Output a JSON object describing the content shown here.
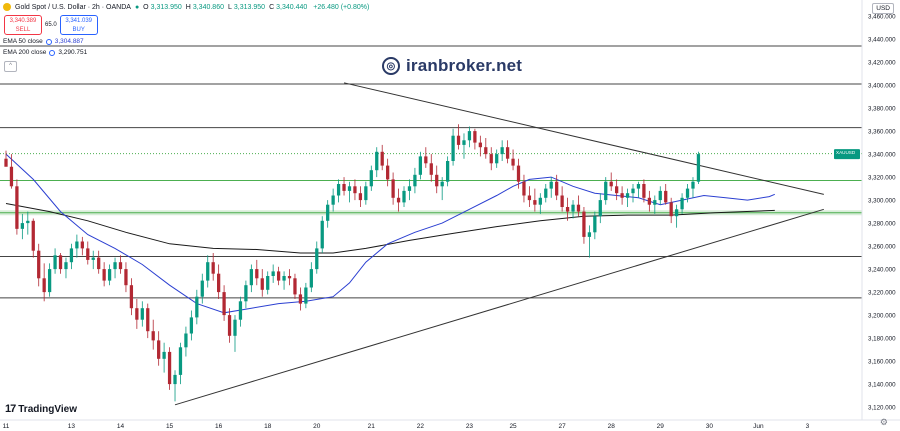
{
  "header": {
    "symbol": "Gold Spot / U.S. Dollar · 2h · OANDA",
    "ohlc": [
      {
        "k": "O",
        "v": "3,313.950"
      },
      {
        "k": "H",
        "v": "3,340.860"
      },
      {
        "k": "L",
        "v": "3,313.950"
      },
      {
        "k": "C",
        "v": "3,340.440"
      },
      {
        "k": "",
        "v": "+26.480 (+0.80%)"
      }
    ]
  },
  "trade": {
    "sell_price": "3,340.389",
    "sell_label": "SELL",
    "spread": "65.0",
    "buy_price": "3,341.039",
    "buy_label": "BUY"
  },
  "indicators": {
    "ema50_label": "EMA 50 close",
    "ema50_value": "3,304.887",
    "ema200_label": "EMA 200 close",
    "ema200_value": "3,290.751"
  },
  "currency": "USD",
  "watermark": "iranbroker.net",
  "brand": "TradingView",
  "colors": {
    "up": "#089981",
    "down": "#b22833",
    "ema50": "#2b3fd1",
    "ema200": "#1a1a1a",
    "level_green": "#4caf50",
    "trendline": "#333333"
  },
  "chart_data": {
    "type": "candlestick",
    "symbol": "XAUUSD",
    "timeframe": "2h",
    "y_ticks": [
      3460,
      3440,
      3420,
      3400,
      3380,
      3360,
      3340,
      3320,
      3300,
      3280,
      3260,
      3240,
      3220,
      3200,
      3180,
      3160,
      3140,
      3120
    ],
    "ylim": [
      3114,
      3474
    ],
    "x_ticks": [
      {
        "label": "11",
        "i": 0
      },
      {
        "label": "13",
        "i": 12
      },
      {
        "label": "14",
        "i": 21
      },
      {
        "label": "15",
        "i": 30
      },
      {
        "label": "16",
        "i": 39
      },
      {
        "label": "18",
        "i": 48
      },
      {
        "label": "20",
        "i": 57
      },
      {
        "label": "21",
        "i": 67
      },
      {
        "label": "22",
        "i": 76
      },
      {
        "label": "23",
        "i": 85
      },
      {
        "label": "25",
        "i": 93
      },
      {
        "label": "27",
        "i": 102
      },
      {
        "label": "28",
        "i": 111
      },
      {
        "label": "29",
        "i": 120
      },
      {
        "label": "30",
        "i": 129
      },
      {
        "label": "Jun",
        "i": 138
      },
      {
        "label": "3",
        "i": 147
      }
    ],
    "xlim": [
      0,
      157
    ],
    "horizontal_levels": [
      {
        "price": 3434.0,
        "label": "3,434.524",
        "style": "solid"
      },
      {
        "price": 3401.0,
        "label": "3,399.117",
        "style": "solid"
      },
      {
        "price": 3363.0,
        "label": "3,364.585",
        "style": "solid"
      },
      {
        "price": 3340.44,
        "label": "3,340.440",
        "style": "dotted-green",
        "current": true,
        "tag": "XAUUSD",
        "tag_sub": "19:03"
      },
      {
        "price": 3317.0,
        "label": "3,318.381",
        "style": "green-solid"
      },
      {
        "price": 3289.0,
        "label": "3,288.208",
        "style": "green-band"
      },
      {
        "price": 3251.0,
        "label": "3,250.945",
        "style": "solid"
      },
      {
        "price": 3215.0,
        "label": "3,215.469",
        "style": "solid"
      }
    ],
    "trendlines": [
      {
        "from": {
          "i": 62,
          "p": 3402
        },
        "to": {
          "i": 150,
          "p": 3305
        }
      },
      {
        "from": {
          "i": 31,
          "p": 3122
        },
        "to": {
          "i": 150,
          "p": 3292
        }
      }
    ],
    "ema50": [
      [
        0,
        3340
      ],
      [
        5,
        3318
      ],
      [
        10,
        3290
      ],
      [
        15,
        3270
      ],
      [
        20,
        3258
      ],
      [
        25,
        3244
      ],
      [
        30,
        3226
      ],
      [
        35,
        3210
      ],
      [
        40,
        3202
      ],
      [
        45,
        3206
      ],
      [
        50,
        3210
      ],
      [
        55,
        3212
      ],
      [
        60,
        3216
      ],
      [
        63,
        3228
      ],
      [
        66,
        3246
      ],
      [
        70,
        3262
      ],
      [
        75,
        3272
      ],
      [
        80,
        3280
      ],
      [
        85,
        3292
      ],
      [
        90,
        3304
      ],
      [
        93,
        3312
      ],
      [
        96,
        3318
      ],
      [
        100,
        3320
      ],
      [
        104,
        3312
      ],
      [
        108,
        3306
      ],
      [
        112,
        3304
      ],
      [
        116,
        3302
      ],
      [
        120,
        3296
      ],
      [
        124,
        3300
      ],
      [
        128,
        3304
      ],
      [
        132,
        3302
      ],
      [
        136,
        3300
      ],
      [
        140,
        3303
      ],
      [
        141,
        3305
      ]
    ],
    "ema200": [
      [
        0,
        3297
      ],
      [
        8,
        3290
      ],
      [
        15,
        3282
      ],
      [
        22,
        3272
      ],
      [
        30,
        3262
      ],
      [
        38,
        3258
      ],
      [
        46,
        3257
      ],
      [
        54,
        3254
      ],
      [
        60,
        3254
      ],
      [
        66,
        3258
      ],
      [
        74,
        3265
      ],
      [
        82,
        3271
      ],
      [
        90,
        3277
      ],
      [
        98,
        3282
      ],
      [
        106,
        3286
      ],
      [
        114,
        3287
      ],
      [
        122,
        3287
      ],
      [
        130,
        3289
      ],
      [
        141,
        3291
      ]
    ],
    "candles": [
      [
        3336,
        3343,
        3330,
        3329
      ],
      [
        3329,
        3340,
        3310,
        3312
      ],
      [
        3312,
        3318,
        3270,
        3275
      ],
      [
        3275,
        3288,
        3266,
        3280
      ],
      [
        3280,
        3290,
        3270,
        3282
      ],
      [
        3282,
        3284,
        3250,
        3256
      ],
      [
        3256,
        3262,
        3225,
        3232
      ],
      [
        3232,
        3245,
        3212,
        3220
      ],
      [
        3220,
        3245,
        3216,
        3240
      ],
      [
        3240,
        3258,
        3236,
        3252
      ],
      [
        3252,
        3254,
        3236,
        3240
      ],
      [
        3240,
        3250,
        3232,
        3246
      ],
      [
        3246,
        3262,
        3240,
        3258
      ],
      [
        3258,
        3270,
        3250,
        3264
      ],
      [
        3264,
        3268,
        3252,
        3258
      ],
      [
        3258,
        3264,
        3244,
        3248
      ],
      [
        3248,
        3256,
        3240,
        3250
      ],
      [
        3250,
        3256,
        3236,
        3240
      ],
      [
        3240,
        3246,
        3225,
        3230
      ],
      [
        3230,
        3244,
        3226,
        3240
      ],
      [
        3240,
        3250,
        3232,
        3246
      ],
      [
        3246,
        3252,
        3236,
        3240
      ],
      [
        3240,
        3246,
        3220,
        3226
      ],
      [
        3226,
        3232,
        3200,
        3206
      ],
      [
        3206,
        3214,
        3188,
        3196
      ],
      [
        3196,
        3212,
        3190,
        3206
      ],
      [
        3206,
        3210,
        3180,
        3186
      ],
      [
        3186,
        3196,
        3170,
        3178
      ],
      [
        3178,
        3186,
        3156,
        3162
      ],
      [
        3162,
        3176,
        3150,
        3168
      ],
      [
        3168,
        3172,
        3135,
        3140
      ],
      [
        3140,
        3152,
        3125,
        3148
      ],
      [
        3148,
        3176,
        3140,
        3172
      ],
      [
        3172,
        3190,
        3164,
        3184
      ],
      [
        3184,
        3204,
        3178,
        3198
      ],
      [
        3198,
        3222,
        3192,
        3216
      ],
      [
        3216,
        3236,
        3210,
        3230
      ],
      [
        3230,
        3252,
        3224,
        3246
      ],
      [
        3246,
        3254,
        3230,
        3236
      ],
      [
        3236,
        3244,
        3214,
        3220
      ],
      [
        3220,
        3226,
        3195,
        3200
      ],
      [
        3200,
        3206,
        3176,
        3182
      ],
      [
        3182,
        3200,
        3168,
        3196
      ],
      [
        3196,
        3216,
        3190,
        3212
      ],
      [
        3212,
        3230,
        3206,
        3226
      ],
      [
        3226,
        3244,
        3220,
        3240
      ],
      [
        3240,
        3248,
        3226,
        3232
      ],
      [
        3232,
        3240,
        3216,
        3222
      ],
      [
        3222,
        3238,
        3218,
        3234
      ],
      [
        3234,
        3244,
        3228,
        3238
      ],
      [
        3238,
        3242,
        3226,
        3230
      ],
      [
        3230,
        3238,
        3222,
        3234
      ],
      [
        3234,
        3240,
        3226,
        3232
      ],
      [
        3232,
        3236,
        3214,
        3218
      ],
      [
        3218,
        3224,
        3204,
        3210
      ],
      [
        3210,
        3228,
        3206,
        3224
      ],
      [
        3224,
        3246,
        3220,
        3240
      ],
      [
        3240,
        3264,
        3236,
        3258
      ],
      [
        3258,
        3286,
        3254,
        3282
      ],
      [
        3282,
        3300,
        3276,
        3296
      ],
      [
        3296,
        3310,
        3290,
        3304
      ],
      [
        3304,
        3318,
        3298,
        3314
      ],
      [
        3314,
        3320,
        3304,
        3308
      ],
      [
        3308,
        3316,
        3298,
        3312
      ],
      [
        3312,
        3318,
        3300,
        3306
      ],
      [
        3306,
        3312,
        3294,
        3300
      ],
      [
        3300,
        3316,
        3296,
        3312
      ],
      [
        3312,
        3330,
        3308,
        3326
      ],
      [
        3326,
        3346,
        3320,
        3342
      ],
      [
        3342,
        3348,
        3326,
        3330
      ],
      [
        3330,
        3336,
        3312,
        3318
      ],
      [
        3318,
        3324,
        3296,
        3302
      ],
      [
        3302,
        3310,
        3290,
        3298
      ],
      [
        3298,
        3312,
        3294,
        3308
      ],
      [
        3308,
        3318,
        3300,
        3312
      ],
      [
        3312,
        3328,
        3306,
        3322
      ],
      [
        3322,
        3342,
        3318,
        3338
      ],
      [
        3338,
        3346,
        3328,
        3332
      ],
      [
        3332,
        3340,
        3316,
        3322
      ],
      [
        3322,
        3330,
        3306,
        3312
      ],
      [
        3312,
        3320,
        3300,
        3316
      ],
      [
        3316,
        3338,
        3312,
        3334
      ],
      [
        3334,
        3362,
        3330,
        3356
      ],
      [
        3356,
        3366,
        3344,
        3348
      ],
      [
        3348,
        3358,
        3336,
        3352
      ],
      [
        3352,
        3364,
        3346,
        3360
      ],
      [
        3360,
        3362,
        3344,
        3350
      ],
      [
        3350,
        3356,
        3338,
        3346
      ],
      [
        3346,
        3354,
        3336,
        3340
      ],
      [
        3340,
        3346,
        3326,
        3332
      ],
      [
        3332,
        3344,
        3328,
        3340
      ],
      [
        3340,
        3352,
        3334,
        3346
      ],
      [
        3346,
        3352,
        3332,
        3336
      ],
      [
        3336,
        3344,
        3326,
        3330
      ],
      [
        3330,
        3336,
        3310,
        3316
      ],
      [
        3316,
        3322,
        3298,
        3304
      ],
      [
        3304,
        3312,
        3294,
        3300
      ],
      [
        3300,
        3310,
        3290,
        3296
      ],
      [
        3296,
        3306,
        3288,
        3302
      ],
      [
        3302,
        3314,
        3298,
        3310
      ],
      [
        3310,
        3320,
        3302,
        3316
      ],
      [
        3316,
        3322,
        3300,
        3304
      ],
      [
        3304,
        3312,
        3290,
        3294
      ],
      [
        3294,
        3302,
        3282,
        3290
      ],
      [
        3290,
        3300,
        3284,
        3296
      ],
      [
        3296,
        3304,
        3286,
        3290
      ],
      [
        3290,
        3294,
        3262,
        3268
      ],
      [
        3268,
        3278,
        3250,
        3272
      ],
      [
        3272,
        3290,
        3266,
        3286
      ],
      [
        3286,
        3306,
        3280,
        3300
      ],
      [
        3300,
        3320,
        3296,
        3316
      ],
      [
        3316,
        3324,
        3308,
        3312
      ],
      [
        3312,
        3318,
        3300,
        3306
      ],
      [
        3306,
        3312,
        3296,
        3302
      ],
      [
        3302,
        3310,
        3294,
        3306
      ],
      [
        3306,
        3314,
        3298,
        3310
      ],
      [
        3310,
        3316,
        3302,
        3314
      ],
      [
        3314,
        3318,
        3298,
        3302
      ],
      [
        3302,
        3308,
        3290,
        3296
      ],
      [
        3296,
        3304,
        3288,
        3300
      ],
      [
        3300,
        3312,
        3296,
        3308
      ],
      [
        3308,
        3314,
        3296,
        3298
      ],
      [
        3298,
        3302,
        3280,
        3286
      ],
      [
        3286,
        3296,
        3276,
        3292
      ],
      [
        3292,
        3306,
        3288,
        3302
      ],
      [
        3302,
        3314,
        3298,
        3310
      ],
      [
        3310,
        3320,
        3302,
        3316
      ],
      [
        3316,
        3342,
        3314,
        3340
      ]
    ]
  }
}
